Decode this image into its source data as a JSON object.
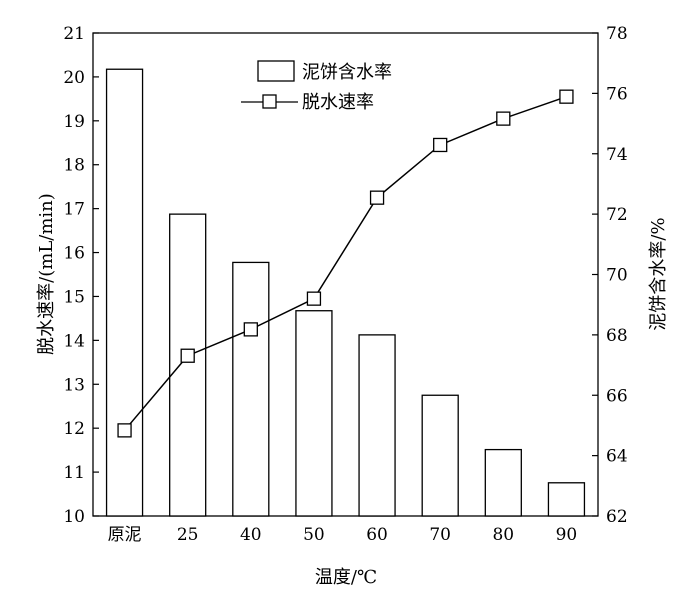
{
  "chart_data": {
    "type": "bar+line",
    "categories": [
      "原泥",
      "25",
      "40",
      "50",
      "60",
      "70",
      "80",
      "90"
    ],
    "xlabel": "温度/℃",
    "ylabel_left": "脱水速率/(mL/min)",
    "ylabel_right": "泥饼含水率/%",
    "ylim_left": [
      10,
      21
    ],
    "ylim_right": [
      62,
      78
    ],
    "yticks_left": [
      "10",
      "11",
      "12",
      "13",
      "14",
      "15",
      "16",
      "17",
      "18",
      "19",
      "20",
      "21"
    ],
    "yticks_right": [
      "62",
      "64",
      "66",
      "68",
      "70",
      "72",
      "74",
      "76",
      "78"
    ],
    "legend_position": "top-center",
    "series": [
      {
        "name": "泥饼含水率",
        "kind": "bar",
        "axis": "right",
        "values": [
          76.8,
          72.0,
          70.4,
          68.8,
          68.0,
          66.0,
          64.2,
          63.1
        ]
      },
      {
        "name": "脱水速率",
        "kind": "line",
        "marker": "square",
        "axis": "left",
        "values": [
          11.95,
          13.65,
          14.25,
          14.95,
          17.25,
          18.45,
          19.05,
          19.55
        ]
      }
    ]
  }
}
